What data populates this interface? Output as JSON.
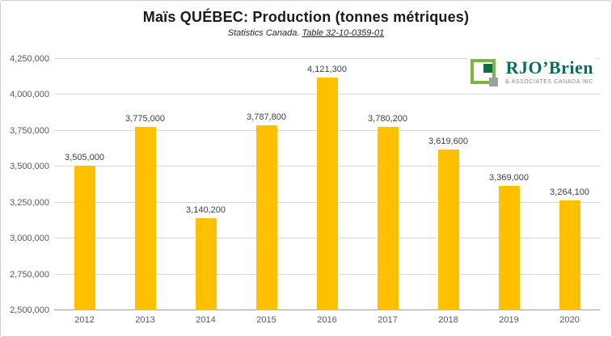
{
  "header": {
    "title": "Maïs QUÉBEC: Production (tonnes métriques)",
    "subtitle_prefix": "Statistics Canada. ",
    "subtitle_link": "Table 32-10-0359-01"
  },
  "logo": {
    "name": "RJO’Brien",
    "subtext": "& ASSOCIATES CANADA INC",
    "brand_color": "#0c6b5d"
  },
  "chart_data": {
    "type": "bar",
    "title": "Maïs QUÉBEC: Production (tonnes métriques)",
    "subtitle": "Statistics Canada. Table 32-10-0359-01",
    "xlabel": "",
    "ylabel": "",
    "categories": [
      "2012",
      "2013",
      "2014",
      "2015",
      "2016",
      "2017",
      "2018",
      "2019",
      "2020"
    ],
    "values": [
      3505000,
      3775000,
      3140200,
      3787800,
      4121300,
      3780200,
      3619600,
      3369000,
      3264100
    ],
    "value_labels": [
      "3,505,000",
      "3,775,000",
      "3,140,200",
      "3,787,800",
      "4,121,300",
      "3,780,200",
      "3,619,600",
      "3,369,000",
      "3,264,100"
    ],
    "ylim": [
      2500000,
      4250000
    ],
    "ytick_values": [
      2500000,
      2750000,
      3000000,
      3250000,
      3500000,
      3750000,
      4000000,
      4250000
    ],
    "ytick_labels": [
      "2,500,000",
      "2,750,000",
      "3,000,000",
      "3,250,000",
      "3,500,000",
      "3,750,000",
      "4,000,000",
      "4,250,000"
    ],
    "bar_color": "#FFC000",
    "grid": true,
    "legend": false,
    "legend_position": "none"
  }
}
